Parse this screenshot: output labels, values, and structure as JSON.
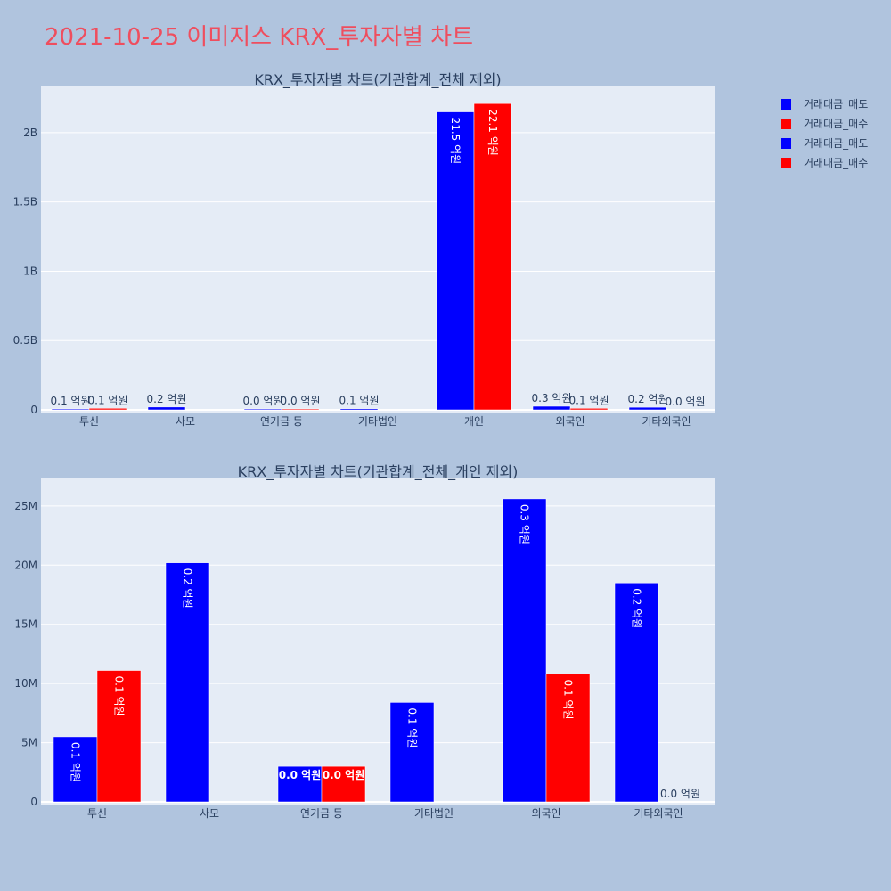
{
  "title": "2021-10-25 이미지스 KRX_투자자별 차트",
  "colors": {
    "sell": "#0000ff",
    "buy": "#ff0000",
    "page_bg": "#b0c4de",
    "plot_bg": "#e5ecf6",
    "title": "#ef4e5e"
  },
  "legend": {
    "placement": "right",
    "items": [
      {
        "name": "거래대금_매도",
        "color": "#0000ff"
      },
      {
        "name": "거래대금_매수",
        "color": "#ff0000"
      },
      {
        "name": "거래대금_매도",
        "color": "#0000ff"
      },
      {
        "name": "거래대금_매수",
        "color": "#ff0000"
      }
    ]
  },
  "chart_data": [
    {
      "type": "bar",
      "title": "KRX_투자자별 차트(기관합계_전체 제외)",
      "categories": [
        "투신",
        "사모",
        "연기금 등",
        "기타법인",
        "개인",
        "외국인",
        "기타외국인"
      ],
      "ylim": [
        0,
        2340000000
      ],
      "yticks": [
        {
          "value": 0,
          "label": "0"
        },
        {
          "value": 500000000,
          "label": "0.5B"
        },
        {
          "value": 1000000000,
          "label": "1B"
        },
        {
          "value": 1500000000,
          "label": "1.5B"
        },
        {
          "value": 2000000000,
          "label": "2B"
        }
      ],
      "grid": true,
      "series": [
        {
          "name": "거래대금_매도",
          "color": "#0000ff",
          "values": [
            5500000,
            20200000,
            3000000,
            8400000,
            2150000000,
            25600000,
            18500000
          ],
          "labels": [
            "0.1 억원",
            "0.2 억원",
            "0.0 억원",
            "0.1 억원",
            "21.5 억원",
            "0.3 억원",
            "0.2 억원"
          ]
        },
        {
          "name": "거래대금_매수",
          "color": "#ff0000",
          "values": [
            11100000,
            0,
            3000000,
            0,
            2210000000,
            10800000,
            0
          ],
          "labels": [
            "0.1 억원",
            "",
            "0.0 억원",
            "",
            "22.1 억원",
            "0.1 억원",
            "0.0 억원"
          ]
        }
      ]
    },
    {
      "type": "bar",
      "title": "KRX_투자자별 차트(기관합계_전체_개인 제외)",
      "categories": [
        "투신",
        "사모",
        "연기금 등",
        "기타법인",
        "외국인",
        "기타외국인"
      ],
      "ylim": [
        0,
        27400000
      ],
      "yticks": [
        {
          "value": 0,
          "label": "0"
        },
        {
          "value": 5000000,
          "label": "5M"
        },
        {
          "value": 10000000,
          "label": "10M"
        },
        {
          "value": 15000000,
          "label": "15M"
        },
        {
          "value": 20000000,
          "label": "20M"
        },
        {
          "value": 25000000,
          "label": "25M"
        }
      ],
      "grid": true,
      "series": [
        {
          "name": "거래대금_매도",
          "color": "#0000ff",
          "values": [
            5500000,
            20200000,
            3000000,
            8400000,
            25600000,
            18500000
          ],
          "labels": [
            "0.1 억원",
            "0.2 억원",
            "0.0 억원",
            "0.1 억원",
            "0.3 억원",
            "0.2 억원"
          ]
        },
        {
          "name": "거래대금_매수",
          "color": "#ff0000",
          "values": [
            11100000,
            0,
            3000000,
            0,
            10800000,
            0
          ],
          "labels": [
            "0.1 억원",
            "",
            "0.0 억원",
            "",
            "0.1 억원",
            "0.0 억원"
          ]
        }
      ]
    }
  ]
}
